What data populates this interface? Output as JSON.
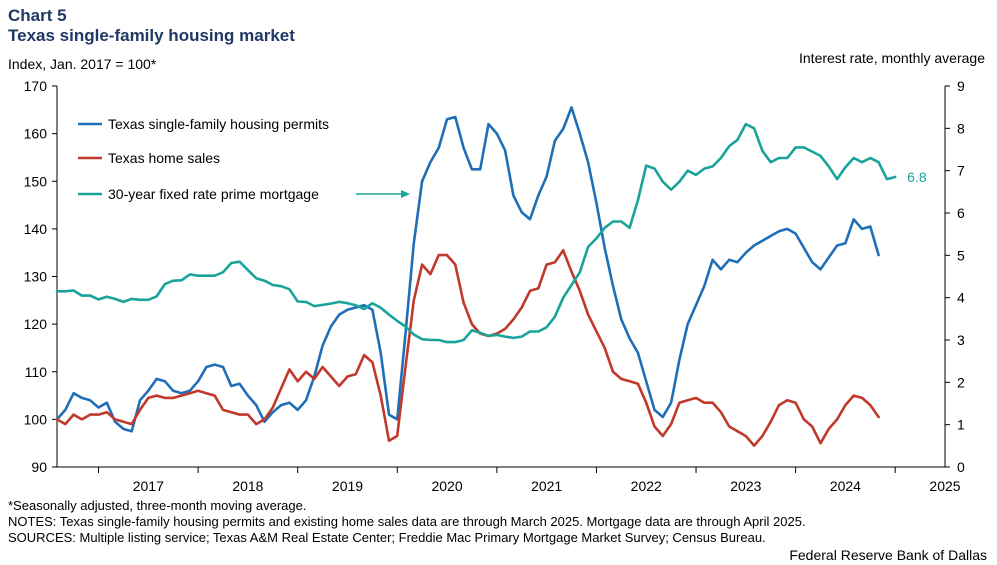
{
  "header": {
    "chart_label": "Chart 5",
    "title": "Texas single-family housing market"
  },
  "footer": {
    "footnote": "*Seasonally adjusted, three-month moving average.",
    "notes": "NOTES: Texas single-family housing permits and existing home sales data are through March 2025. Mortgage data are through April 2025.",
    "sources": "SOURCES: Multiple listing service; Texas A&M Real Estate Center; Freddie Mac Primary Mortgage Market Survey; Census Bureau.",
    "credit": "Federal Reserve Bank of Dallas"
  },
  "colors": {
    "permits": "#1f6fb8",
    "sales": "#c0392b",
    "mortgage": "#1aa39a",
    "title": "#1f3864"
  },
  "chart_data": {
    "type": "line",
    "title": "Texas single-family housing market",
    "left_axis": {
      "label": "Index, Jan. 2017 = 100*",
      "ylim": [
        90,
        170
      ],
      "ticks": [
        90,
        100,
        110,
        120,
        130,
        140,
        150,
        160,
        170
      ]
    },
    "right_axis": {
      "label": "Interest rate, monthly average",
      "ylim": [
        0,
        9
      ],
      "ticks": [
        0,
        1,
        2,
        3,
        4,
        5,
        6,
        7,
        8,
        9
      ]
    },
    "x_axis": {
      "start": 2016.583,
      "end": 2025.5,
      "labels": [
        "2017",
        "2018",
        "2019",
        "2020",
        "2021",
        "2022",
        "2023",
        "2024",
        "2025"
      ]
    },
    "end_label": "6.8",
    "series": [
      {
        "name": "Texas single-family housing permits",
        "axis": "left",
        "start": 2016.583,
        "values": [
          100,
          102,
          105.5,
          104.5,
          104,
          102.5,
          103.5,
          99.5,
          98,
          97.5,
          104,
          106,
          108.5,
          108,
          106,
          105.5,
          106,
          108,
          111,
          111.5,
          111,
          107,
          107.5,
          105,
          103,
          99.5,
          101.5,
          103,
          103.5,
          102,
          104,
          109,
          115.5,
          119.5,
          122,
          123,
          123.5,
          124,
          123,
          114,
          101,
          100,
          118,
          137,
          150,
          154,
          157,
          163,
          163.5,
          157,
          152.5,
          152.5,
          162,
          160,
          156.5,
          147,
          143.5,
          142,
          147,
          151,
          158.5,
          161,
          165.5,
          160,
          154,
          145.5,
          136,
          128,
          121,
          117,
          114,
          108,
          102,
          100.5,
          103.5,
          112.5,
          120,
          124,
          128,
          133.5,
          131.5,
          133.5,
          133,
          135,
          136.5,
          137.5,
          138.5,
          139.5,
          140,
          139,
          136,
          133,
          131.5,
          134,
          136.5,
          137,
          142,
          140,
          140.5,
          134.5
        ]
      },
      {
        "name": "Texas home sales",
        "axis": "left",
        "start": 2016.583,
        "values": [
          100,
          99,
          101,
          100,
          101,
          101,
          101.5,
          100,
          99.5,
          99,
          102,
          104.5,
          105,
          104.5,
          104.5,
          105,
          105.5,
          106,
          105.5,
          105,
          102,
          101.5,
          101,
          101,
          99,
          100,
          102.5,
          106.5,
          110.5,
          108,
          110,
          108.5,
          111,
          109,
          107,
          109,
          109.5,
          113.5,
          112,
          105,
          95.5,
          96.5,
          111,
          125,
          132.5,
          130.5,
          134.5,
          134.5,
          132.5,
          124.5,
          120,
          118,
          117.5,
          118,
          119,
          121,
          123.5,
          127,
          127.5,
          132.5,
          133,
          135.5,
          131,
          127,
          122,
          118.5,
          115,
          110,
          108.5,
          108,
          107.5,
          103.5,
          98.5,
          96.5,
          99,
          103.5,
          104,
          104.5,
          103.5,
          103.5,
          101.5,
          98.5,
          97.5,
          96.5,
          94.5,
          96.5,
          99.5,
          103,
          104,
          103.5,
          100,
          98.5,
          95,
          98,
          100,
          103,
          105,
          104.5,
          103,
          100.5
        ]
      },
      {
        "name": "30-year fixed rate prime mortgage",
        "axis": "right",
        "start": 2016.583,
        "values": [
          4.15,
          4.15,
          4.17,
          4.05,
          4.05,
          3.96,
          4.02,
          3.97,
          3.9,
          3.97,
          3.95,
          3.95,
          4.03,
          4.32,
          4.4,
          4.41,
          4.55,
          4.52,
          4.52,
          4.52,
          4.6,
          4.82,
          4.85,
          4.65,
          4.46,
          4.4,
          4.3,
          4.27,
          4.2,
          3.91,
          3.9,
          3.8,
          3.83,
          3.86,
          3.9,
          3.87,
          3.82,
          3.73,
          3.87,
          3.76,
          3.6,
          3.45,
          3.32,
          3.13,
          3.02,
          3,
          3,
          2.95,
          2.95,
          3,
          3.23,
          3.17,
          3.1,
          3.12,
          3.08,
          3.05,
          3.08,
          3.2,
          3.2,
          3.3,
          3.55,
          4.0,
          4.3,
          4.6,
          5.2,
          5.4,
          5.65,
          5.8,
          5.8,
          5.65,
          6.3,
          7.12,
          7.05,
          6.74,
          6.55,
          6.74,
          7.0,
          6.9,
          7.05,
          7.1,
          7.3,
          7.58,
          7.73,
          8.1,
          8.0,
          7.47,
          7.2,
          7.3,
          7.3,
          7.55,
          7.55,
          7.45,
          7.35,
          7.1,
          6.8,
          7.08,
          7.3,
          7.2,
          7.3,
          7.2,
          6.8,
          6.85
        ]
      }
    ]
  }
}
